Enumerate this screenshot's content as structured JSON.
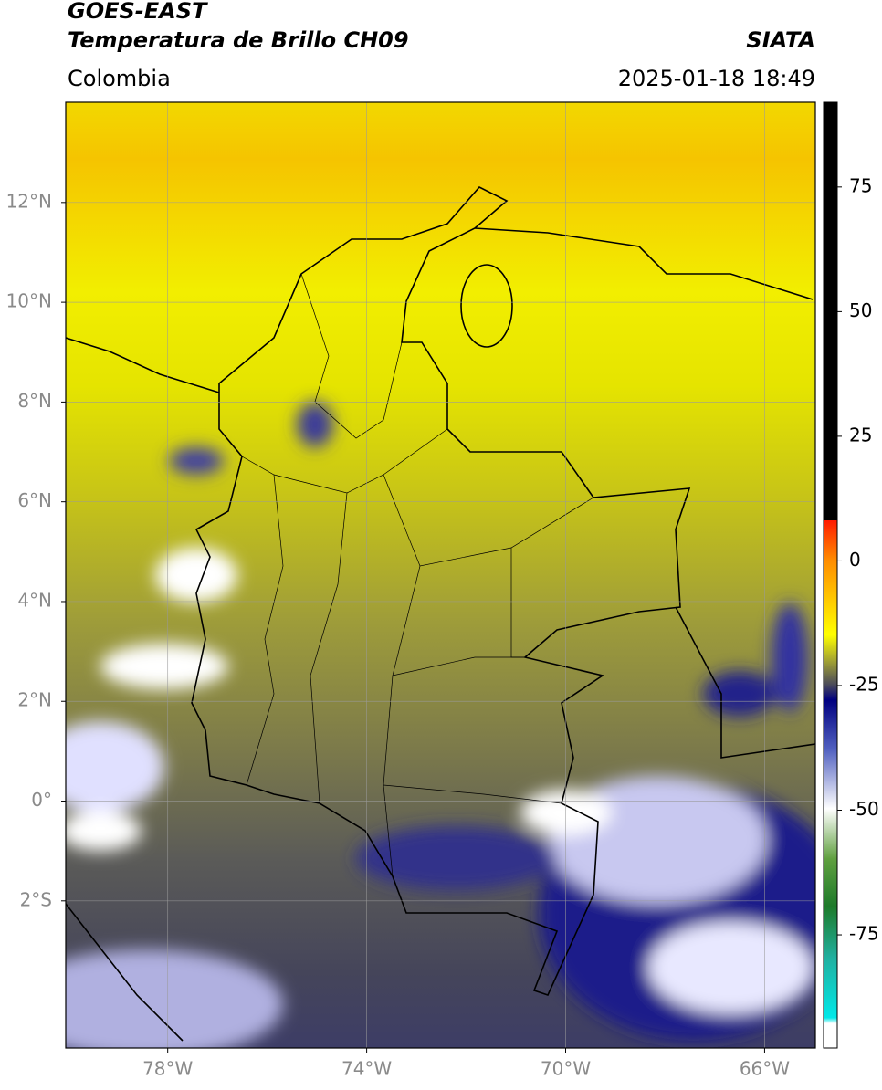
{
  "header": {
    "satellite": "GOES-EAST",
    "product": "Temperatura de Brillo CH09",
    "source": "SIATA",
    "region": "Colombia",
    "datetime": "2025-01-18 18:49"
  },
  "map": {
    "lonlim": [
      -80.05,
      -64.98
    ],
    "latlim": [
      -4.95,
      14.01
    ],
    "grid": true,
    "lonticks": [
      {
        "value": -78,
        "label": "78°W"
      },
      {
        "value": -74,
        "label": "74°W"
      },
      {
        "value": -70,
        "label": "70°W"
      },
      {
        "value": -66,
        "label": "66°W"
      }
    ],
    "latticks": [
      {
        "value": 12,
        "label": "12°N"
      },
      {
        "value": 10,
        "label": "10°N"
      },
      {
        "value": 8,
        "label": "8°N"
      },
      {
        "value": 6,
        "label": "6°N"
      },
      {
        "value": 4,
        "label": "4°N"
      },
      {
        "value": 2,
        "label": "2°N"
      },
      {
        "value": 0,
        "label": "0°"
      },
      {
        "value": -2,
        "label": "2°S"
      }
    ]
  },
  "colorbar": {
    "lim": [
      -97.7,
      92
    ],
    "ticks": [
      75,
      50,
      25,
      0,
      -25,
      -50,
      -75
    ]
  }
}
